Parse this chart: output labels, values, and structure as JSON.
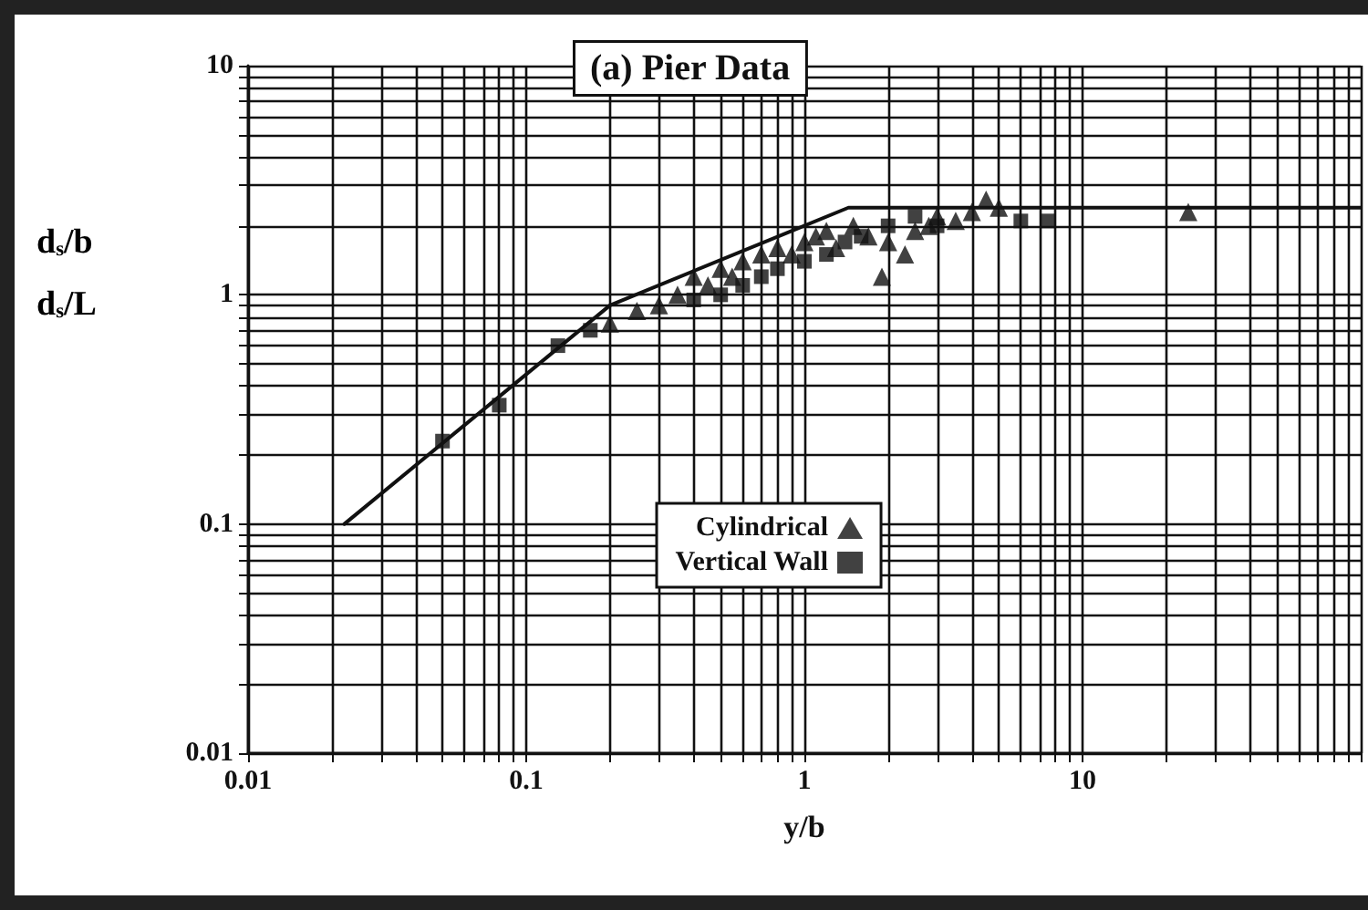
{
  "chart_data": {
    "type": "scatter",
    "xlabel": "y/b",
    "ylabel": "d$_{s}$/b\nd$_{s}$/L",
    "annotations": [
      "(a) Pier Data"
    ],
    "log": "xy",
    "grid": true,
    "legend": "bottom",
    "xlim": [
      0.01,
      100
    ],
    "ylim": [
      0.01,
      10
    ],
    "xticks": [
      0.01,
      {
        "value": 0.02,
        "label": null
      },
      {
        "value": 0.03,
        "label": null
      },
      {
        "value": 0.04,
        "label": null
      },
      {
        "value": 0.05,
        "label": null
      },
      {
        "value": 0.06,
        "label": null
      },
      {
        "value": 0.07,
        "label": null
      },
      {
        "value": 0.08,
        "label": null
      },
      {
        "value": 0.09,
        "label": null
      },
      0.1,
      {
        "value": 0.2,
        "label": null
      },
      {
        "value": 0.3,
        "label": null
      },
      {
        "value": 0.4,
        "label": null
      },
      {
        "value": 0.5,
        "label": null
      },
      {
        "value": 0.6,
        "label": null
      },
      {
        "value": 0.7,
        "label": null
      },
      {
        "value": 0.8,
        "label": null
      },
      {
        "value": 0.9,
        "label": null
      },
      1,
      {
        "value": 2,
        "label": null
      },
      {
        "value": 3,
        "label": null
      },
      {
        "value": 4,
        "label": null
      },
      {
        "value": 5,
        "label": null
      },
      {
        "value": 6,
        "label": null
      },
      {
        "value": 7,
        "label": null
      },
      {
        "value": 8,
        "label": null
      },
      {
        "value": 9,
        "label": null
      },
      10,
      {
        "value": 20,
        "label": null
      },
      {
        "value": 30,
        "label": null
      },
      {
        "value": 40,
        "label": null
      },
      {
        "value": 50,
        "label": null
      },
      {
        "value": 60,
        "label": null
      },
      {
        "value": 70,
        "label": null
      },
      {
        "value": 80,
        "label": null
      },
      {
        "value": 90,
        "label": null
      },
      {
        "value": 100,
        "label": null
      }
    ],
    "yticks": [
      0.01,
      {
        "value": 0.02,
        "label": null
      },
      {
        "value": 0.03,
        "label": null
      },
      {
        "value": 0.04,
        "label": null
      },
      {
        "value": 0.05,
        "label": null
      },
      {
        "value": 0.06,
        "label": null
      },
      {
        "value": 0.07,
        "label": null
      },
      {
        "value": 0.08,
        "label": null
      },
      {
        "value": 0.09,
        "label": null
      },
      0.1,
      {
        "value": 0.2,
        "label": null
      },
      {
        "value": 0.3,
        "label": null
      },
      {
        "value": 0.4,
        "label": null
      },
      {
        "value": 0.5,
        "label": null
      },
      {
        "value": 0.6,
        "label": null
      },
      {
        "value": 0.7,
        "label": null
      },
      {
        "value": 0.8,
        "label": null
      },
      {
        "value": 0.9,
        "label": null
      },
      1,
      {
        "value": 2,
        "label": null
      },
      {
        "value": 3,
        "label": null
      },
      {
        "value": 4,
        "label": null
      },
      {
        "value": 5,
        "label": null
      },
      {
        "value": 6,
        "label": null
      },
      {
        "value": 7,
        "label": null
      },
      {
        "value": 8,
        "label": null
      },
      {
        "value": 9,
        "label": null
      },
      10
    ],
    "series": [
      {
        "type": "line",
        "color": "#111111",
        "marker": "none",
        "line_style": "solid",
        "x": [
          0.0222,
          0.2,
          1.44,
          100
        ],
        "values": [
          0.1,
          0.9,
          2.4,
          2.4
        ]
      },
      {
        "name": "Cylindrical",
        "color": "#111111",
        "marker": "triangle",
        "x": [
          0.2,
          0.25,
          0.3,
          0.35,
          0.4,
          0.45,
          0.5,
          0.55,
          0.6,
          0.7,
          0.8,
          0.9,
          1.0,
          1.1,
          1.2,
          1.3,
          1.5,
          1.7,
          1.9,
          2.0,
          2.3,
          2.5,
          2.8,
          3.0,
          3.5,
          4.0,
          4.5,
          5,
          24
        ],
        "values": [
          0.75,
          0.85,
          0.9,
          1.0,
          1.2,
          1.1,
          1.3,
          1.2,
          1.4,
          1.5,
          1.6,
          1.5,
          1.7,
          1.8,
          1.9,
          1.6,
          2.0,
          1.8,
          1.2,
          1.7,
          1.5,
          1.9,
          2.0,
          2.2,
          2.1,
          2.3,
          2.6,
          2.4,
          2.3
        ]
      },
      {
        "name": "Vertical Wall",
        "color": "#111111",
        "marker": "square",
        "x": [
          0.05,
          0.08,
          0.13,
          0.17,
          0.4,
          0.5,
          0.6,
          0.7,
          0.8,
          1.0,
          1.2,
          1.4,
          1.6,
          2.0,
          2.5,
          3,
          6,
          7.5
        ],
        "values": [
          0.23,
          0.33,
          0.6,
          0.7,
          0.95,
          1.0,
          1.1,
          1.2,
          1.3,
          1.4,
          1.5,
          1.7,
          1.8,
          2.0,
          2.2,
          2.0,
          2.1,
          2.1
        ]
      }
    ]
  }
}
